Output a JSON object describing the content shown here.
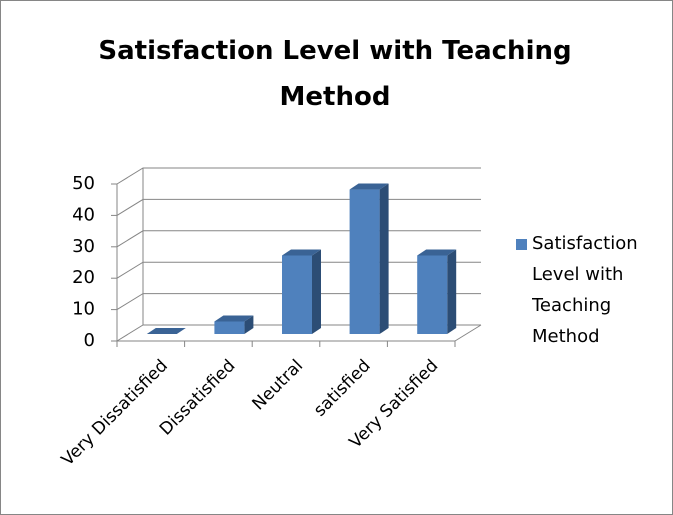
{
  "chart_data": {
    "type": "bar3d",
    "title": "Satisfaction Level with Teaching Method",
    "categories": [
      "Very Dissatisfied",
      "Dissatisfied",
      "Neutral",
      "satisfied",
      "Very Satisfied"
    ],
    "series": [
      {
        "name": "Satisfaction Level with Teaching Method",
        "color": "#4f81bd",
        "values": [
          0,
          4,
          25,
          46,
          25
        ]
      }
    ],
    "ylim": [
      0,
      50
    ],
    "yticks": [
      0,
      10,
      20,
      30,
      40,
      50
    ],
    "grid": true,
    "legend": "right"
  }
}
